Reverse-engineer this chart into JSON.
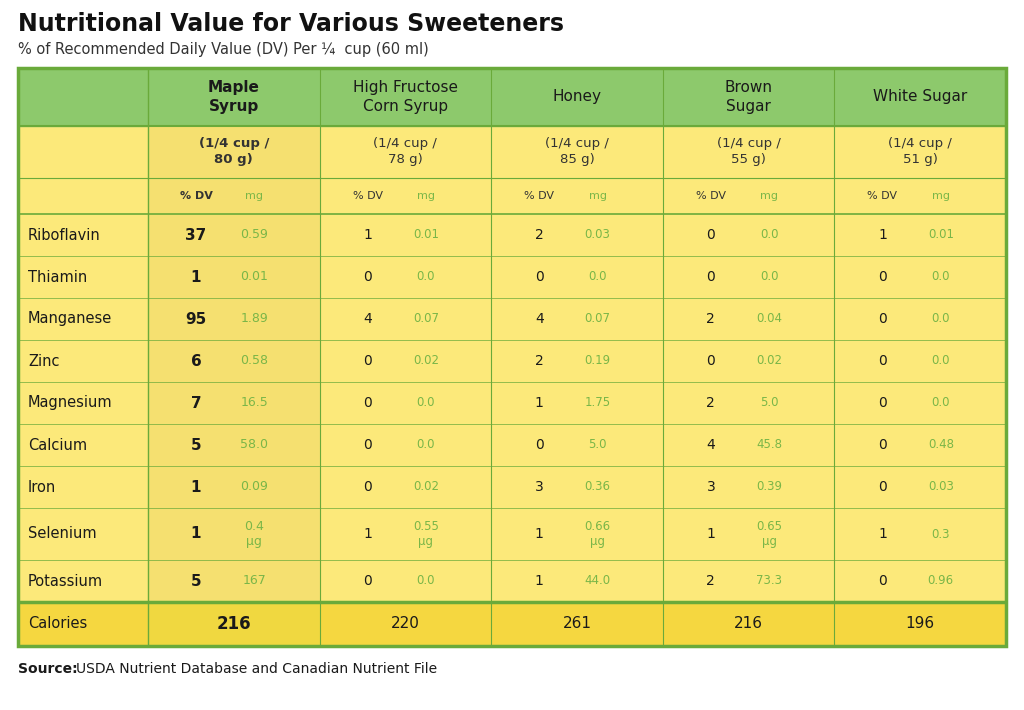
{
  "title": "Nutritional Value for Various Sweeteners",
  "subtitle": "% of Recommended Daily Value (DV) Per ¼  cup (60 ml)",
  "source_bold": "Source:",
  "source_text": "USDA Nutrient Database and Canadian Nutrient File",
  "col_headers": [
    "Maple\nSyrup",
    "High Fructose\nCorn Syrup",
    "Honey",
    "Brown\nSugar",
    "White Sugar"
  ],
  "col_subheaders": [
    "(1/4 cup /\n80 g)",
    "(1/4 cup /\n78 g)",
    "(1/4 cup /\n85 g)",
    "(1/4 cup /\n55 g)",
    "(1/4 cup /\n51 g)"
  ],
  "row_labels": [
    "Riboflavin",
    "Thiamin",
    "Manganese",
    "Zinc",
    "Magnesium",
    "Calcium",
    "Iron",
    "Selenium",
    "Potassium"
  ],
  "data": [
    [
      [
        "37",
        "0.59"
      ],
      [
        "1",
        "0.01"
      ],
      [
        "2",
        "0.03"
      ],
      [
        "0",
        "0.0"
      ],
      [
        "1",
        "0.01"
      ]
    ],
    [
      [
        "1",
        "0.01"
      ],
      [
        "0",
        "0.0"
      ],
      [
        "0",
        "0.0"
      ],
      [
        "0",
        "0.0"
      ],
      [
        "0",
        "0.0"
      ]
    ],
    [
      [
        "95",
        "1.89"
      ],
      [
        "4",
        "0.07"
      ],
      [
        "4",
        "0.07"
      ],
      [
        "2",
        "0.04"
      ],
      [
        "0",
        "0.0"
      ]
    ],
    [
      [
        "6",
        "0.58"
      ],
      [
        "0",
        "0.02"
      ],
      [
        "2",
        "0.19"
      ],
      [
        "0",
        "0.02"
      ],
      [
        "0",
        "0.0"
      ]
    ],
    [
      [
        "7",
        "16.5"
      ],
      [
        "0",
        "0.0"
      ],
      [
        "1",
        "1.75"
      ],
      [
        "2",
        "5.0"
      ],
      [
        "0",
        "0.0"
      ]
    ],
    [
      [
        "5",
        "58.0"
      ],
      [
        "0",
        "0.0"
      ],
      [
        "0",
        "5.0"
      ],
      [
        "4",
        "45.8"
      ],
      [
        "0",
        "0.48"
      ]
    ],
    [
      [
        "1",
        "0.09"
      ],
      [
        "0",
        "0.02"
      ],
      [
        "3",
        "0.36"
      ],
      [
        "3",
        "0.39"
      ],
      [
        "0",
        "0.03"
      ]
    ],
    [
      [
        "1",
        "0.4\nμg"
      ],
      [
        "1",
        "0.55\nμg"
      ],
      [
        "1",
        "0.66\nμg"
      ],
      [
        "1",
        "0.65\nμg"
      ],
      [
        "1",
        "0.3"
      ]
    ],
    [
      [
        "5",
        "167"
      ],
      [
        "0",
        "0.0"
      ],
      [
        "1",
        "44.0"
      ],
      [
        "2",
        "73.3"
      ],
      [
        "0",
        "0.96"
      ]
    ]
  ],
  "calories": [
    "216",
    "220",
    "261",
    "216",
    "196"
  ],
  "color_header_green": "#8dc96c",
  "color_data_yellow": "#fce97a",
  "color_calories_yellow": "#f5d740",
  "color_maple_col": "#f5e070",
  "color_mg_green": "#7ab648",
  "color_border_green": "#6aaa3a",
  "color_title": "#1a1a1a",
  "bg_color": "#ffffff"
}
